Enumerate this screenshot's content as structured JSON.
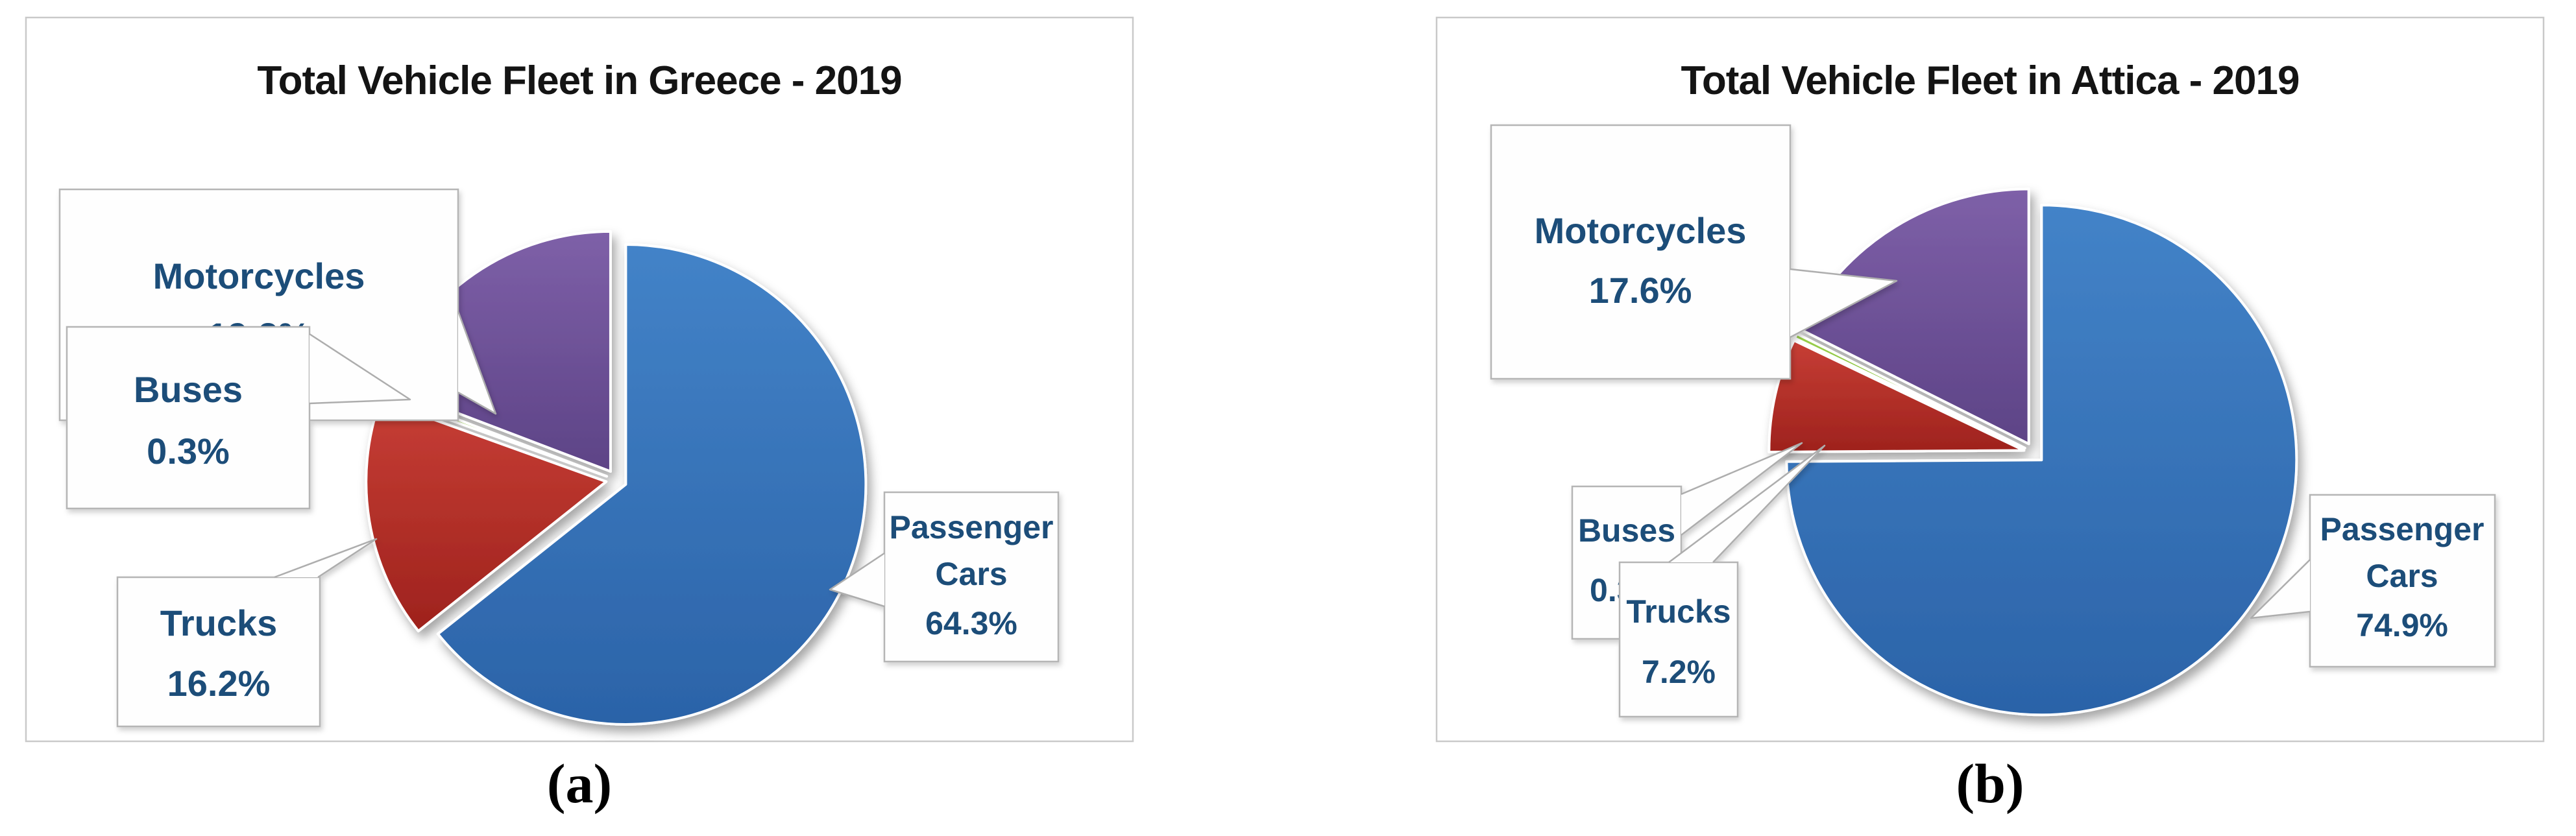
{
  "figure": {
    "caption_a": "(a)",
    "caption_b": "(b)",
    "label_text_color": "#1F4E79",
    "title_text_color": "#141414",
    "panel_border_color": "#c9c9c9",
    "callout_border_color": "#b5b5b5"
  },
  "chart_data": [
    {
      "type": "pie",
      "title": "Total Vehicle Fleet in Greece - 2019",
      "start_angle_deg": 0,
      "direction": "clockwise",
      "legend_position": "callouts",
      "slices": [
        {
          "label": "Passenger Cars",
          "label_lines": [
            "Passenger",
            "Cars"
          ],
          "value": 64.3,
          "pct_label": "64.3%",
          "color": "#3572B9",
          "color_light": "#4383C8",
          "color_dark": "#2B63A8"
        },
        {
          "label": "Trucks",
          "label_lines": [
            "Trucks"
          ],
          "value": 16.2,
          "pct_label": "16.2%",
          "color": "#B52E28",
          "color_light": "#C73E35",
          "color_dark": "#9E221D"
        },
        {
          "label": "Buses",
          "label_lines": [
            "Buses"
          ],
          "value": 0.3,
          "pct_label": "0.3%",
          "color": "#8FC43F",
          "color_light": "#99CF4B",
          "color_dark": "#7FB437"
        },
        {
          "label": "Motorcycles",
          "label_lines": [
            "Motorcycles"
          ],
          "value": 19.2,
          "pct_label": "19.2%",
          "color": "#6E5098",
          "color_light": "#7E60A8",
          "color_dark": "#5D4386"
        }
      ]
    },
    {
      "type": "pie",
      "title": "Total Vehicle Fleet in Attica - 2019",
      "start_angle_deg": 0,
      "direction": "clockwise",
      "legend_position": "callouts",
      "slices": [
        {
          "label": "Passenger Cars",
          "label_lines": [
            "Passenger",
            "Cars"
          ],
          "value": 74.9,
          "pct_label": "74.9%",
          "color": "#3572B9",
          "color_light": "#4383C8",
          "color_dark": "#2B63A8"
        },
        {
          "label": "Trucks",
          "label_lines": [
            "Trucks"
          ],
          "value": 7.2,
          "pct_label": "7.2%",
          "color": "#B52E28",
          "color_light": "#C73E35",
          "color_dark": "#9E221D"
        },
        {
          "label": "Buses",
          "label_lines": [
            "Buses"
          ],
          "value": 0.3,
          "pct_label": "0.3%",
          "color": "#8FC43F",
          "color_light": "#99CF4B",
          "color_dark": "#7FB437"
        },
        {
          "label": "Motorcycles",
          "label_lines": [
            "Motorcycles"
          ],
          "value": 17.6,
          "pct_label": "17.6%",
          "color": "#6E5098",
          "color_light": "#7E60A8",
          "color_dark": "#5D4386"
        }
      ]
    }
  ]
}
